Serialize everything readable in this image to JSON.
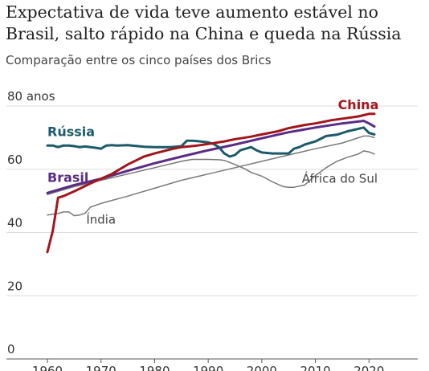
{
  "title": "Expectativa de vida teve aumento estável no Brasil, salto rápido na China e queda na Rússia",
  "subtitle": "Comparação entre os cinco países dos Brics",
  "colors": {
    "china": "#a3161c",
    "russia": "#1c5a6b",
    "brazil": "#5b2c86",
    "south_africa": "#777777",
    "india": "#7a7a7a"
  },
  "chart_data": {
    "type": "line",
    "title": "Expectativa de vida teve aumento estável no Brasil, salto rápido na China e queda na Rússia",
    "subtitle": "Comparação entre os cinco países dos Brics",
    "y_tick_labels": [
      "0",
      "20",
      "40",
      "60",
      "80 anos"
    ],
    "y_ticks": [
      0,
      20,
      40,
      60,
      80
    ],
    "x_tick_labels": [
      "1960",
      "1970",
      "1980",
      "1990",
      "2000",
      "2010",
      "2020"
    ],
    "x_ticks": [
      1960,
      1970,
      1980,
      1990,
      2000,
      2010,
      2020
    ],
    "xlim": [
      1960,
      2021
    ],
    "ylim": [
      0,
      80
    ],
    "grid": true,
    "series": [
      {
        "name": "China",
        "color_key": "china",
        "stroke_width": 3,
        "x": [
          1960,
          1961,
          1962,
          1963,
          1965,
          1968,
          1970,
          1972,
          1975,
          1978,
          1980,
          1983,
          1985,
          1988,
          1990,
          1993,
          1995,
          1998,
          2000,
          2003,
          2005,
          2008,
          2010,
          2013,
          2015,
          2018,
          2020,
          2021
        ],
        "y": [
          33.8,
          40.5,
          51,
          51.5,
          53,
          55.5,
          57,
          58.5,
          61.5,
          64,
          65,
          66.3,
          67,
          67.5,
          68,
          68.8,
          69.5,
          70.3,
          71,
          72,
          73,
          74,
          74.5,
          75.5,
          76,
          76.7,
          77.5,
          77.5
        ]
      },
      {
        "name": "Rússia",
        "color_key": "russia",
        "stroke_width": 3,
        "x": [
          1960,
          1961,
          1962,
          1963,
          1964,
          1965,
          1966,
          1967,
          1968,
          1969,
          1970,
          1971,
          1972,
          1973,
          1975,
          1978,
          1980,
          1983,
          1985,
          1986,
          1987,
          1988,
          1990,
          1991,
          1992,
          1993,
          1994,
          1995,
          1996,
          1997,
          1998,
          1999,
          2000,
          2002,
          2003,
          2005,
          2006,
          2007,
          2008,
          2010,
          2012,
          2014,
          2016,
          2018,
          2019,
          2020,
          2021
        ],
        "y": [
          67.5,
          67.5,
          67,
          67.5,
          67.5,
          67.3,
          67,
          67.2,
          67,
          66.8,
          66.5,
          67.5,
          67.6,
          67.5,
          67.6,
          67.1,
          67,
          67,
          67.3,
          69,
          69,
          68.9,
          68.5,
          68,
          67,
          65,
          64,
          64.5,
          66,
          66.5,
          67,
          66,
          65.3,
          65,
          65,
          65,
          66.5,
          67,
          67.8,
          68.8,
          70.5,
          70.9,
          72,
          72.8,
          73.2,
          71.5,
          71
        ]
      },
      {
        "name": "Brasil",
        "color_key": "brazil",
        "stroke_width": 3,
        "x": [
          1960,
          1965,
          1970,
          1975,
          1980,
          1985,
          1990,
          1995,
          2000,
          2005,
          2010,
          2015,
          2019,
          2020,
          2021
        ],
        "y": [
          52.5,
          55,
          57,
          59.5,
          61.9,
          64,
          66,
          67.8,
          69.8,
          71.7,
          73.2,
          74.5,
          75.3,
          74.5,
          73.5
        ]
      },
      {
        "name": "África do Sul",
        "color_key": "south_africa",
        "stroke_width": 1.5,
        "x": [
          1960,
          1965,
          1970,
          1975,
          1980,
          1985,
          1987,
          1990,
          1992,
          1993,
          1995,
          1997,
          1998,
          2000,
          2002,
          2004,
          2005,
          2006,
          2008,
          2009,
          2010,
          2012,
          2014,
          2016,
          2018,
          2019,
          2020,
          2021
        ],
        "y": [
          52,
          54.5,
          56.5,
          58.5,
          60.5,
          62.5,
          63.1,
          63.1,
          63,
          62.8,
          61.5,
          60,
          59,
          57.8,
          56,
          54.5,
          54.3,
          54.3,
          55,
          56.5,
          58,
          60.5,
          62.5,
          63.8,
          64.8,
          65.8,
          65.5,
          64.8
        ]
      },
      {
        "name": "Índia",
        "color_key": "india",
        "stroke_width": 1.5,
        "x": [
          1960,
          1962,
          1963,
          1964,
          1965,
          1966,
          1967,
          1968,
          1970,
          1975,
          1980,
          1985,
          1990,
          1995,
          2000,
          2005,
          2010,
          2015,
          2019,
          2020,
          2021
        ],
        "y": [
          45.5,
          46,
          46.5,
          46.5,
          45.3,
          45.5,
          46,
          48,
          49.2,
          51.5,
          54,
          56.5,
          58.5,
          60.5,
          62.5,
          64.5,
          66.5,
          68.3,
          70.5,
          70.5,
          70
        ]
      }
    ],
    "labels": [
      {
        "text": "China",
        "series": "China",
        "x": 2018,
        "y": 79,
        "anchor": "middle",
        "bold": true,
        "size": 16
      },
      {
        "text": "Rússia",
        "series": "Rússia",
        "x": 1960,
        "y": 70.5,
        "anchor": "start",
        "bold": true,
        "size": 16
      },
      {
        "text": "Brasil",
        "series": "Brasil",
        "x": 1960,
        "y": 56,
        "anchor": "start",
        "bold": true,
        "size": 16
      },
      {
        "text": "África do Sul",
        "series": "África do Sul",
        "x": 2021.6,
        "y": 55.8,
        "anchor": "end",
        "bold": false,
        "size": 15
      },
      {
        "text": "Índia",
        "series": "Índia",
        "x": 1970,
        "y": 42.8,
        "anchor": "middle",
        "bold": false,
        "size": 15
      }
    ]
  }
}
